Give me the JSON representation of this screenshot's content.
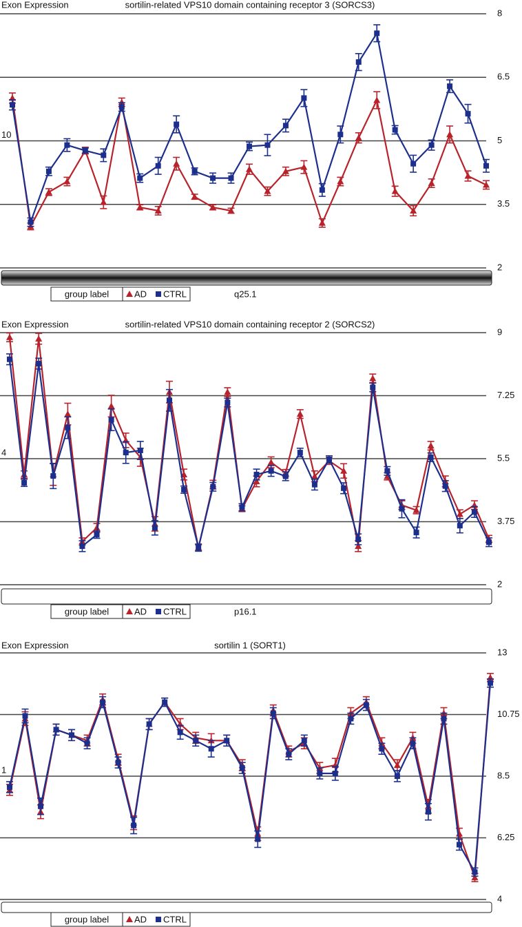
{
  "chart_data": [
    {
      "type": "line",
      "label": "Exon Expression",
      "title": "sortilin-related VPS10 domain containing receptor 3 (SORCS3)",
      "side_label": "10",
      "band": "q25.1",
      "legend_title": "group label",
      "ideogram_shaded": true,
      "ylim": [
        2,
        8
      ],
      "yticks": [
        2,
        3.5,
        5,
        6.5,
        8
      ],
      "series": [
        {
          "name": "AD",
          "color": "#b8232b",
          "marker": "triangle",
          "values": [
            6.01,
            2.98,
            3.79,
            4.04,
            4.77,
            3.55,
            5.91,
            3.43,
            3.35,
            4.46,
            3.68,
            3.43,
            3.35,
            4.33,
            3.81,
            4.28,
            4.38,
            3.06,
            4.04,
            5.07,
            5.96,
            3.81,
            3.35,
            4.0,
            5.15,
            4.17,
            3.96
          ],
          "errors": [
            0.12,
            0.08,
            0.08,
            0.1,
            0.08,
            0.15,
            0.1,
            0.06,
            0.1,
            0.15,
            0.06,
            0.06,
            0.06,
            0.12,
            0.1,
            0.1,
            0.15,
            0.1,
            0.1,
            0.12,
            0.2,
            0.12,
            0.12,
            0.1,
            0.2,
            0.12,
            0.1
          ]
        },
        {
          "name": "CTRL",
          "color": "#1c2f8c",
          "marker": "square",
          "values": [
            5.85,
            3.08,
            4.28,
            4.9,
            4.77,
            4.66,
            5.8,
            4.12,
            4.41,
            5.39,
            4.28,
            4.12,
            4.12,
            4.87,
            4.9,
            5.36,
            6.01,
            3.84,
            5.15,
            6.86,
            7.54,
            5.26,
            4.46,
            4.9,
            6.29,
            5.64,
            4.41
          ],
          "errors": [
            0.12,
            0.1,
            0.1,
            0.15,
            0.06,
            0.15,
            0.1,
            0.1,
            0.2,
            0.2,
            0.08,
            0.12,
            0.12,
            0.1,
            0.25,
            0.15,
            0.2,
            0.15,
            0.2,
            0.2,
            0.2,
            0.1,
            0.2,
            0.12,
            0.15,
            0.22,
            0.15
          ]
        }
      ]
    },
    {
      "type": "line",
      "label": "Exon Expression",
      "title": "sortilin-related VPS10 domain containing receptor 2 (SORCS2)",
      "side_label": "4",
      "band": "p16.1",
      "legend_title": "group label",
      "ideogram_shaded": false,
      "ylim": [
        2,
        9
      ],
      "yticks": [
        2,
        3.75,
        5.5,
        7.25,
        9
      ],
      "series": [
        {
          "name": "AD",
          "color": "#b8232b",
          "marker": "triangle",
          "values": [
            8.87,
            5.06,
            8.83,
            5.06,
            6.74,
            3.2,
            3.58,
            6.96,
            6.01,
            5.54,
            3.69,
            7.35,
            5.06,
            3.03,
            4.78,
            7.35,
            4.11,
            4.87,
            5.4,
            5.1,
            6.74,
            5.01,
            5.44,
            5.16,
            3.07,
            7.73,
            5.01,
            4.21,
            4.07,
            5.86,
            4.87,
            3.96,
            4.21,
            3.27
          ],
          "errors": [
            0.12,
            0.1,
            0.15,
            0.3,
            0.3,
            0.1,
            0.12,
            0.3,
            0.2,
            0.25,
            0.2,
            0.3,
            0.15,
            0.08,
            0.12,
            0.12,
            0.08,
            0.15,
            0.15,
            0.1,
            0.12,
            0.15,
            0.1,
            0.2,
            0.15,
            0.12,
            0.1,
            0.12,
            0.1,
            0.12,
            0.15,
            0.12,
            0.12,
            0.1
          ]
        },
        {
          "name": "CTRL",
          "color": "#1c2f8c",
          "marker": "square",
          "values": [
            8.26,
            4.83,
            8.14,
            5.02,
            6.36,
            3.07,
            3.39,
            6.58,
            5.67,
            5.73,
            3.58,
            7.12,
            4.64,
            3.03,
            4.72,
            7.06,
            4.15,
            5.06,
            5.16,
            5.01,
            5.67,
            4.78,
            5.48,
            4.68,
            3.26,
            7.48,
            5.16,
            4.11,
            3.45,
            5.54,
            4.74,
            3.64,
            4.02,
            3.18
          ],
          "errors": [
            0.15,
            0.1,
            0.15,
            0.35,
            0.3,
            0.15,
            0.1,
            0.3,
            0.3,
            0.25,
            0.2,
            0.3,
            0.1,
            0.1,
            0.12,
            0.12,
            0.1,
            0.15,
            0.15,
            0.12,
            0.12,
            0.15,
            0.1,
            0.15,
            0.15,
            0.12,
            0.12,
            0.25,
            0.15,
            0.12,
            0.15,
            0.2,
            0.15,
            0.12
          ]
        }
      ]
    },
    {
      "type": "line",
      "label": "Exon Expression",
      "title": "sortilin 1 (SORT1)",
      "side_label": "1",
      "legend_title": "group label",
      "ideogram_shaded": false,
      "ylim": [
        4,
        13
      ],
      "yticks": [
        4,
        6.25,
        8.5,
        10.75,
        13
      ],
      "series": [
        {
          "name": "AD",
          "color": "#b8232b",
          "marker": "triangle",
          "values": [
            8.0,
            10.6,
            7.2,
            10.2,
            10.0,
            9.8,
            11.3,
            9.1,
            6.8,
            10.4,
            11.2,
            10.4,
            9.9,
            9.8,
            9.8,
            8.9,
            6.4,
            10.9,
            9.4,
            9.7,
            8.8,
            8.9,
            10.8,
            11.2,
            9.7,
            8.9,
            9.9,
            7.4,
            10.8,
            6.4,
            4.8,
            12.1
          ],
          "errors": [
            0.2,
            0.25,
            0.25,
            0.2,
            0.2,
            0.2,
            0.2,
            0.2,
            0.25,
            0.2,
            0.15,
            0.2,
            0.2,
            0.25,
            0.2,
            0.2,
            0.25,
            0.2,
            0.2,
            0.2,
            0.2,
            0.25,
            0.2,
            0.2,
            0.2,
            0.2,
            0.2,
            0.25,
            0.2,
            0.2,
            0.15,
            0.15
          ]
        },
        {
          "name": "CTRL",
          "color": "#1c2f8c",
          "marker": "square",
          "values": [
            8.1,
            10.7,
            7.4,
            10.2,
            10.0,
            9.7,
            11.2,
            9.0,
            6.7,
            10.4,
            11.2,
            10.1,
            9.8,
            9.5,
            9.8,
            8.8,
            6.2,
            10.8,
            9.3,
            9.8,
            8.6,
            8.6,
            10.6,
            11.1,
            9.5,
            8.5,
            9.7,
            7.2,
            10.6,
            6.0,
            5.0,
            11.9
          ],
          "errors": [
            0.2,
            0.25,
            0.3,
            0.2,
            0.2,
            0.2,
            0.2,
            0.2,
            0.3,
            0.2,
            0.15,
            0.25,
            0.2,
            0.3,
            0.2,
            0.2,
            0.3,
            0.2,
            0.2,
            0.2,
            0.2,
            0.25,
            0.2,
            0.2,
            0.2,
            0.2,
            0.2,
            0.3,
            0.2,
            0.2,
            0.15,
            0.15
          ]
        }
      ]
    }
  ]
}
